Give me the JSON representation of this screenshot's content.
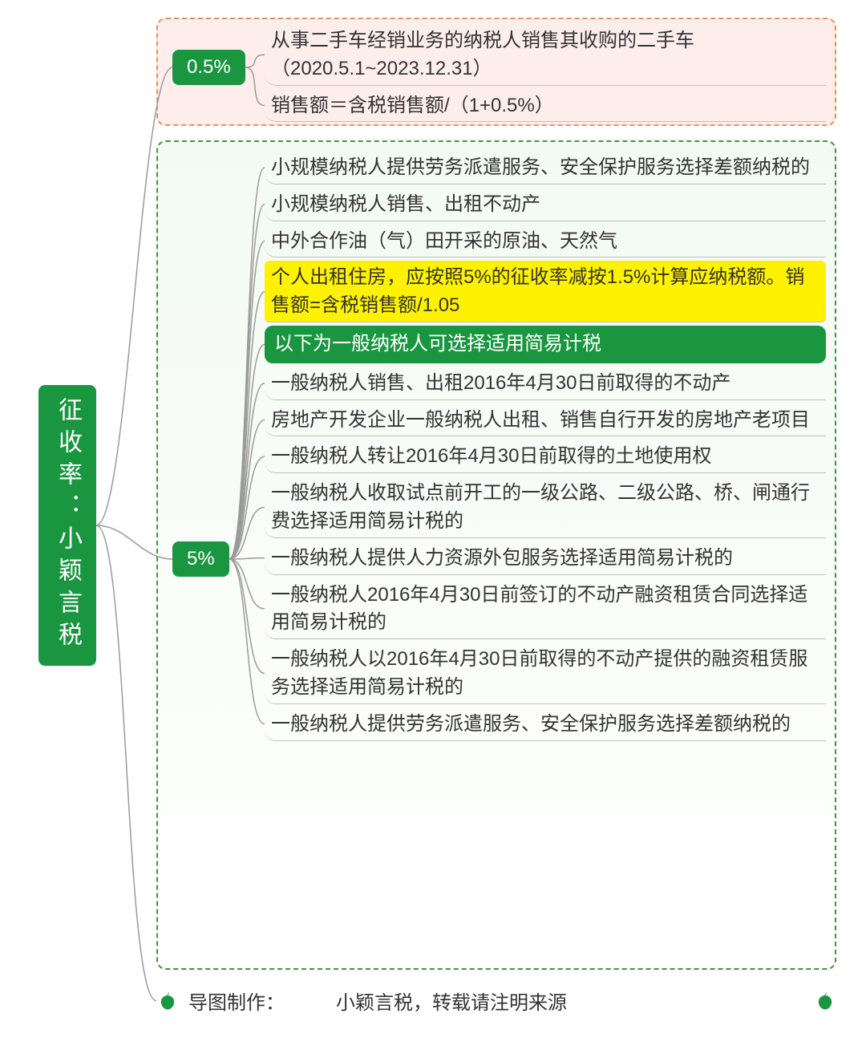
{
  "root": {
    "label": "征收率：小颖言税"
  },
  "groupA": {
    "rate": "0.5%",
    "border_color": "#e8905a",
    "bg_color": "#fdeeec",
    "items": [
      {
        "text": "从事二手车经销业务的纳税人销售其收购的二手车（2020.5.1~2023.12.31）",
        "style": "plain"
      },
      {
        "text": "销售额＝含税销售额/（1+0.5%）",
        "style": "plain"
      }
    ]
  },
  "groupB": {
    "rate": "5%",
    "border_color": "#4a8f46",
    "bg_color": "#f3faf3",
    "items": [
      {
        "text": "小规模纳税人提供劳务派遣服务、安全保护服务选择差额纳税的",
        "style": "plain"
      },
      {
        "text": "小规模纳税人销售、出租不动产",
        "style": "plain"
      },
      {
        "text": "中外合作油（气）田开采的原油、天然气",
        "style": "plain"
      },
      {
        "text": "个人出租住房，应按照5%的征收率减按1.5%计算应纳税额。销售额=含税销售额/1.05",
        "style": "yellow"
      },
      {
        "text": "以下为一般纳税人可选择适用简易计税",
        "style": "green"
      },
      {
        "text": "一般纳税人销售、出租2016年4月30日前取得的不动产",
        "style": "plain"
      },
      {
        "text": "房地产开发企业一般纳税人出租、销售自行开发的房地产老项目",
        "style": "plain"
      },
      {
        "text": "一般纳税人转让2016年4月30日前取得的土地使用权",
        "style": "plain"
      },
      {
        "text": "一般纳税人收取试点前开工的一级公路、二级公路、桥、闸通行费选择适用简易计税的",
        "style": "plain"
      },
      {
        "text": "一般纳税人提供人力资源外包服务选择适用简易计税的",
        "style": "plain"
      },
      {
        "text": "一般纳税人2016年4月30日前签订的不动产融资租赁合同选择适用简易计税的",
        "style": "plain"
      },
      {
        "text": "一般纳税人以2016年4月30日前取得的不动产提供的融资租赁服务选择适用简易计税的",
        "style": "plain"
      },
      {
        "text": "一般纳税人提供劳务派遣服务、安全保护服务选择差额纳税的",
        "style": "plain"
      }
    ]
  },
  "footer": {
    "label": "导图制作：",
    "author": "小颖言税，转载请注明来源"
  },
  "colors": {
    "brand_green": "#1a9641",
    "highlight_yellow": "#fff200",
    "connector": "#9a9a9a",
    "text": "#333333"
  }
}
